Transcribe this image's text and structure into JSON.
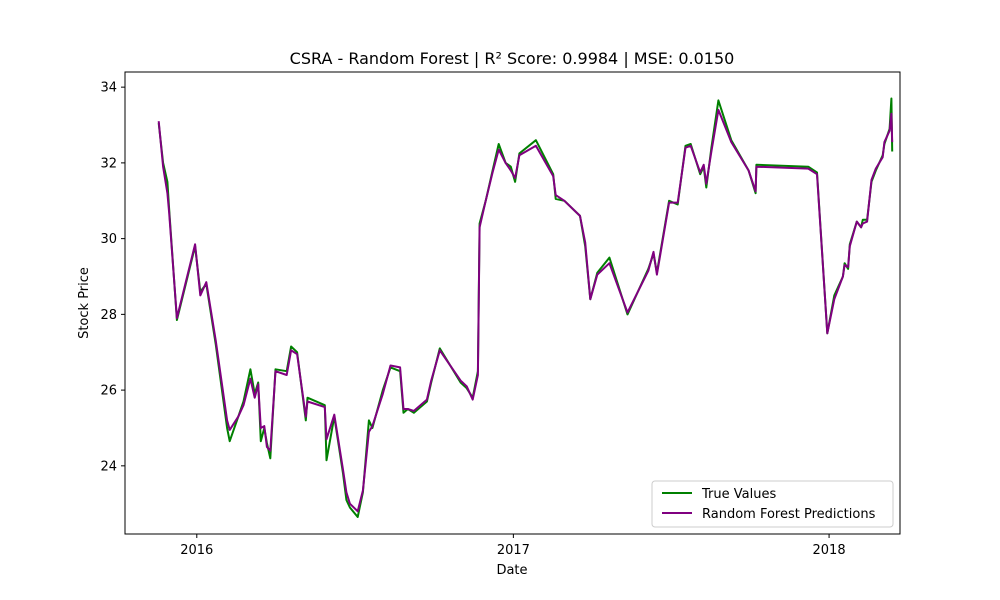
{
  "chart_data": {
    "type": "line",
    "title": "CSRA - Random Forest | R² Score: 0.9984 | MSE: 0.0150",
    "xlabel": "Date",
    "ylabel": "Stock Price",
    "xlim": [
      "2015-10-10",
      "2018-03-24"
    ],
    "ylim": [
      22.2,
      34.4
    ],
    "x_ticks": [
      "2016-01-01",
      "2017-01-01",
      "2018-01-01"
    ],
    "x_tick_labels": [
      "2016",
      "2017",
      "2018"
    ],
    "y_ticks": [
      24,
      26,
      28,
      30,
      32,
      34
    ],
    "y_tick_labels": [
      "24",
      "26",
      "28",
      "30",
      "32",
      "34"
    ],
    "grid": false,
    "legend_position": "lower right",
    "series": [
      {
        "name": "True Values",
        "color": "#008000",
        "points": [
          [
            "2015-11-18",
            33.05
          ],
          [
            "2015-11-23",
            32.0
          ],
          [
            "2015-11-28",
            31.5
          ],
          [
            "2015-11-30",
            30.8
          ],
          [
            "2015-12-09",
            27.85
          ],
          [
            "2015-12-30",
            29.8
          ],
          [
            "2016-01-05",
            28.6
          ],
          [
            "2016-01-12",
            28.8
          ],
          [
            "2016-01-23",
            27.2
          ],
          [
            "2016-02-05",
            25.0
          ],
          [
            "2016-02-08",
            24.65
          ],
          [
            "2016-02-18",
            25.3
          ],
          [
            "2016-02-24",
            25.7
          ],
          [
            "2016-03-03",
            26.55
          ],
          [
            "2016-03-08",
            25.9
          ],
          [
            "2016-03-12",
            26.2
          ],
          [
            "2016-03-15",
            24.65
          ],
          [
            "2016-03-19",
            25.0
          ],
          [
            "2016-03-22",
            24.6
          ],
          [
            "2016-03-26",
            24.2
          ],
          [
            "2016-04-01",
            26.55
          ],
          [
            "2016-04-14",
            26.5
          ],
          [
            "2016-04-19",
            27.15
          ],
          [
            "2016-04-26",
            27.0
          ],
          [
            "2016-05-06",
            25.2
          ],
          [
            "2016-05-08",
            25.8
          ],
          [
            "2016-05-28",
            25.6
          ],
          [
            "2016-05-30",
            24.15
          ],
          [
            "2016-06-08",
            25.3
          ],
          [
            "2016-06-18",
            23.8
          ],
          [
            "2016-06-22",
            23.1
          ],
          [
            "2016-06-26",
            22.9
          ],
          [
            "2016-07-05",
            22.65
          ],
          [
            "2016-07-11",
            23.3
          ],
          [
            "2016-07-18",
            25.2
          ],
          [
            "2016-07-22",
            25.0
          ],
          [
            "2016-08-03",
            26.0
          ],
          [
            "2016-08-12",
            26.6
          ],
          [
            "2016-08-23",
            26.5
          ],
          [
            "2016-08-27",
            25.4
          ],
          [
            "2016-09-01",
            25.5
          ],
          [
            "2016-09-08",
            25.4
          ],
          [
            "2016-09-23",
            25.7
          ],
          [
            "2016-09-28",
            26.2
          ],
          [
            "2016-10-08",
            27.1
          ],
          [
            "2016-11-01",
            26.2
          ],
          [
            "2016-11-08",
            26.05
          ],
          [
            "2016-11-15",
            25.8
          ],
          [
            "2016-11-21",
            26.5
          ],
          [
            "2016-11-23",
            30.4
          ],
          [
            "2016-11-30",
            31.0
          ],
          [
            "2016-12-08",
            31.8
          ],
          [
            "2016-12-15",
            32.5
          ],
          [
            "2016-12-23",
            32.0
          ],
          [
            "2016-12-29",
            31.9
          ],
          [
            "2017-01-03",
            31.5
          ],
          [
            "2017-01-08",
            32.25
          ],
          [
            "2017-01-27",
            32.6
          ],
          [
            "2017-02-16",
            31.7
          ],
          [
            "2017-02-19",
            31.05
          ],
          [
            "2017-03-01",
            31.0
          ],
          [
            "2017-03-19",
            30.6
          ],
          [
            "2017-03-25",
            29.8
          ],
          [
            "2017-03-31",
            28.4
          ],
          [
            "2017-04-08",
            29.1
          ],
          [
            "2017-04-22",
            29.5
          ],
          [
            "2017-05-13",
            28.0
          ],
          [
            "2017-06-06",
            29.2
          ],
          [
            "2017-06-12",
            29.6
          ],
          [
            "2017-06-16",
            29.1
          ],
          [
            "2017-06-30",
            31.0
          ],
          [
            "2017-07-10",
            30.9
          ],
          [
            "2017-07-19",
            32.45
          ],
          [
            "2017-07-25",
            32.5
          ],
          [
            "2017-08-05",
            31.7
          ],
          [
            "2017-08-09",
            31.9
          ],
          [
            "2017-08-12",
            31.35
          ],
          [
            "2017-08-18",
            32.4
          ],
          [
            "2017-08-26",
            33.65
          ],
          [
            "2017-09-10",
            32.6
          ],
          [
            "2017-09-30",
            31.8
          ],
          [
            "2017-10-08",
            31.2
          ],
          [
            "2017-10-09",
            31.95
          ],
          [
            "2017-12-08",
            31.9
          ],
          [
            "2017-12-18",
            31.75
          ],
          [
            "2017-12-30",
            27.5
          ],
          [
            "2018-01-07",
            28.5
          ],
          [
            "2018-01-17",
            29.0
          ],
          [
            "2018-01-19",
            29.35
          ],
          [
            "2018-01-23",
            29.2
          ],
          [
            "2018-01-25",
            29.85
          ],
          [
            "2018-02-02",
            30.45
          ],
          [
            "2018-02-07",
            30.3
          ],
          [
            "2018-02-09",
            30.5
          ],
          [
            "2018-02-14",
            30.5
          ],
          [
            "2018-02-19",
            31.5
          ],
          [
            "2018-02-24",
            31.8
          ],
          [
            "2018-03-04",
            32.2
          ],
          [
            "2018-03-06",
            32.5
          ],
          [
            "2018-03-12",
            32.9
          ],
          [
            "2018-03-14",
            33.7
          ],
          [
            "2018-03-15",
            32.3
          ]
        ]
      },
      {
        "name": "Random Forest Predictions",
        "color": "#800080",
        "points": [
          [
            "2015-11-18",
            33.1
          ],
          [
            "2015-11-23",
            31.9
          ],
          [
            "2015-11-28",
            31.2
          ],
          [
            "2015-11-30",
            30.7
          ],
          [
            "2015-12-09",
            27.9
          ],
          [
            "2015-12-30",
            29.85
          ],
          [
            "2016-01-05",
            28.5
          ],
          [
            "2016-01-12",
            28.85
          ],
          [
            "2016-01-23",
            27.3
          ],
          [
            "2016-02-05",
            25.2
          ],
          [
            "2016-02-08",
            24.95
          ],
          [
            "2016-02-18",
            25.3
          ],
          [
            "2016-02-24",
            25.6
          ],
          [
            "2016-03-03",
            26.3
          ],
          [
            "2016-03-08",
            25.8
          ],
          [
            "2016-03-12",
            26.15
          ],
          [
            "2016-03-15",
            25.0
          ],
          [
            "2016-03-19",
            25.05
          ],
          [
            "2016-03-22",
            24.5
          ],
          [
            "2016-03-26",
            24.4
          ],
          [
            "2016-04-01",
            26.5
          ],
          [
            "2016-04-14",
            26.4
          ],
          [
            "2016-04-19",
            27.05
          ],
          [
            "2016-04-26",
            26.95
          ],
          [
            "2016-05-06",
            25.3
          ],
          [
            "2016-05-08",
            25.7
          ],
          [
            "2016-05-28",
            25.55
          ],
          [
            "2016-05-30",
            24.7
          ],
          [
            "2016-06-08",
            25.35
          ],
          [
            "2016-06-18",
            23.9
          ],
          [
            "2016-06-22",
            23.3
          ],
          [
            "2016-06-26",
            23.0
          ],
          [
            "2016-07-05",
            22.8
          ],
          [
            "2016-07-11",
            23.35
          ],
          [
            "2016-07-18",
            24.9
          ],
          [
            "2016-07-22",
            25.05
          ],
          [
            "2016-08-03",
            25.9
          ],
          [
            "2016-08-12",
            26.65
          ],
          [
            "2016-08-23",
            26.6
          ],
          [
            "2016-08-27",
            25.5
          ],
          [
            "2016-09-01",
            25.5
          ],
          [
            "2016-09-08",
            25.45
          ],
          [
            "2016-09-23",
            25.75
          ],
          [
            "2016-09-28",
            26.25
          ],
          [
            "2016-10-08",
            27.05
          ],
          [
            "2016-11-01",
            26.25
          ],
          [
            "2016-11-08",
            26.1
          ],
          [
            "2016-11-15",
            25.75
          ],
          [
            "2016-11-21",
            26.4
          ],
          [
            "2016-11-23",
            30.3
          ],
          [
            "2016-11-30",
            31.0
          ],
          [
            "2016-12-08",
            31.75
          ],
          [
            "2016-12-15",
            32.35
          ],
          [
            "2016-12-23",
            32.0
          ],
          [
            "2016-12-29",
            31.8
          ],
          [
            "2017-01-03",
            31.6
          ],
          [
            "2017-01-08",
            32.2
          ],
          [
            "2017-01-27",
            32.45
          ],
          [
            "2017-02-16",
            31.65
          ],
          [
            "2017-02-19",
            31.15
          ],
          [
            "2017-03-01",
            31.0
          ],
          [
            "2017-03-19",
            30.6
          ],
          [
            "2017-03-25",
            29.9
          ],
          [
            "2017-03-31",
            28.4
          ],
          [
            "2017-04-08",
            29.05
          ],
          [
            "2017-04-22",
            29.35
          ],
          [
            "2017-05-13",
            28.05
          ],
          [
            "2017-06-06",
            29.15
          ],
          [
            "2017-06-12",
            29.65
          ],
          [
            "2017-06-16",
            29.05
          ],
          [
            "2017-06-30",
            30.95
          ],
          [
            "2017-07-10",
            30.95
          ],
          [
            "2017-07-19",
            32.4
          ],
          [
            "2017-07-25",
            32.45
          ],
          [
            "2017-08-05",
            31.75
          ],
          [
            "2017-08-09",
            31.95
          ],
          [
            "2017-08-12",
            31.45
          ],
          [
            "2017-08-18",
            32.3
          ],
          [
            "2017-08-26",
            33.4
          ],
          [
            "2017-09-10",
            32.55
          ],
          [
            "2017-09-30",
            31.8
          ],
          [
            "2017-10-08",
            31.25
          ],
          [
            "2017-10-09",
            31.9
          ],
          [
            "2017-12-08",
            31.85
          ],
          [
            "2017-12-18",
            31.7
          ],
          [
            "2017-12-30",
            27.5
          ],
          [
            "2018-01-07",
            28.4
          ],
          [
            "2018-01-17",
            29.0
          ],
          [
            "2018-01-19",
            29.3
          ],
          [
            "2018-01-23",
            29.25
          ],
          [
            "2018-01-25",
            29.8
          ],
          [
            "2018-02-02",
            30.45
          ],
          [
            "2018-02-07",
            30.3
          ],
          [
            "2018-02-09",
            30.4
          ],
          [
            "2018-02-14",
            30.45
          ],
          [
            "2018-02-19",
            31.55
          ],
          [
            "2018-02-24",
            31.85
          ],
          [
            "2018-03-04",
            32.15
          ],
          [
            "2018-03-06",
            32.55
          ],
          [
            "2018-03-12",
            32.85
          ],
          [
            "2018-03-14",
            33.3
          ],
          [
            "2018-03-15",
            32.55
          ]
        ]
      }
    ]
  }
}
